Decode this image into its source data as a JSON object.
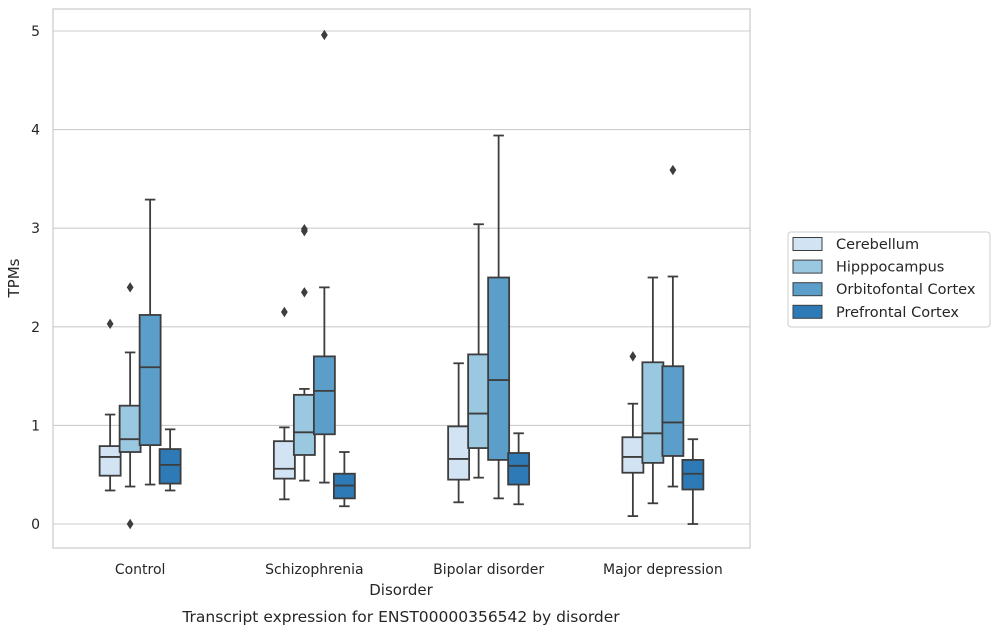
{
  "chart_data": {
    "type": "boxplot",
    "title": "",
    "caption": "Transcript expression for ENST00000356542 by disorder",
    "xlabel": "Disorder",
    "ylabel": "TPMs",
    "ylim": [
      -0.24,
      5.22
    ],
    "yticks": [
      0,
      1,
      2,
      3,
      4,
      5
    ],
    "grid": true,
    "legend_position": "right",
    "categories": [
      "Control",
      "Schizophrenia",
      "Bipolar disorder",
      "Major depression"
    ],
    "series": [
      {
        "name": "Cerebellum",
        "color": "#d2e3f3",
        "boxes": [
          {
            "low": 0.34,
            "q1": 0.49,
            "median": 0.68,
            "q3": 0.79,
            "high": 1.11,
            "outliers": [
              2.03
            ]
          },
          {
            "low": 0.25,
            "q1": 0.46,
            "median": 0.56,
            "q3": 0.84,
            "high": 0.98,
            "outliers": [
              2.15
            ]
          },
          {
            "low": 0.22,
            "q1": 0.45,
            "median": 0.66,
            "q3": 0.99,
            "high": 1.63,
            "outliers": []
          },
          {
            "low": 0.08,
            "q1": 0.52,
            "median": 0.68,
            "q3": 0.88,
            "high": 1.22,
            "outliers": [
              1.7
            ]
          }
        ]
      },
      {
        "name": "Hipppocampus",
        "color": "#9ac8e0",
        "boxes": [
          {
            "low": 0.38,
            "q1": 0.73,
            "median": 0.86,
            "q3": 1.2,
            "high": 1.74,
            "outliers": [
              0.0,
              2.4
            ]
          },
          {
            "low": 0.44,
            "q1": 0.7,
            "median": 0.93,
            "q3": 1.31,
            "high": 1.37,
            "outliers": [
              2.35,
              2.97,
              2.99
            ]
          },
          {
            "low": 0.47,
            "q1": 0.77,
            "median": 1.12,
            "q3": 1.72,
            "high": 3.04,
            "outliers": []
          },
          {
            "low": 0.21,
            "q1": 0.62,
            "median": 0.92,
            "q3": 1.64,
            "high": 2.5,
            "outliers": []
          }
        ]
      },
      {
        "name": "Orbitofontal Cortex",
        "color": "#5b9ec9",
        "boxes": [
          {
            "low": 0.4,
            "q1": 0.8,
            "median": 1.59,
            "q3": 2.12,
            "high": 3.29,
            "outliers": []
          },
          {
            "low": 0.42,
            "q1": 0.91,
            "median": 1.35,
            "q3": 1.7,
            "high": 2.4,
            "outliers": [
              4.96
            ]
          },
          {
            "low": 0.26,
            "q1": 0.65,
            "median": 1.46,
            "q3": 2.5,
            "high": 3.94,
            "outliers": []
          },
          {
            "low": 0.38,
            "q1": 0.69,
            "median": 1.03,
            "q3": 1.6,
            "high": 2.51,
            "outliers": [
              3.59
            ]
          }
        ]
      },
      {
        "name": "Prefrontal Cortex",
        "color": "#2d7ab6",
        "boxes": [
          {
            "low": 0.34,
            "q1": 0.41,
            "median": 0.6,
            "q3": 0.76,
            "high": 0.96,
            "outliers": []
          },
          {
            "low": 0.18,
            "q1": 0.26,
            "median": 0.39,
            "q3": 0.51,
            "high": 0.73,
            "outliers": []
          },
          {
            "low": 0.2,
            "q1": 0.4,
            "median": 0.59,
            "q3": 0.72,
            "high": 0.92,
            "outliers": []
          },
          {
            "low": 0.0,
            "q1": 0.35,
            "median": 0.51,
            "q3": 0.65,
            "high": 0.86,
            "outliers": []
          }
        ]
      }
    ]
  }
}
